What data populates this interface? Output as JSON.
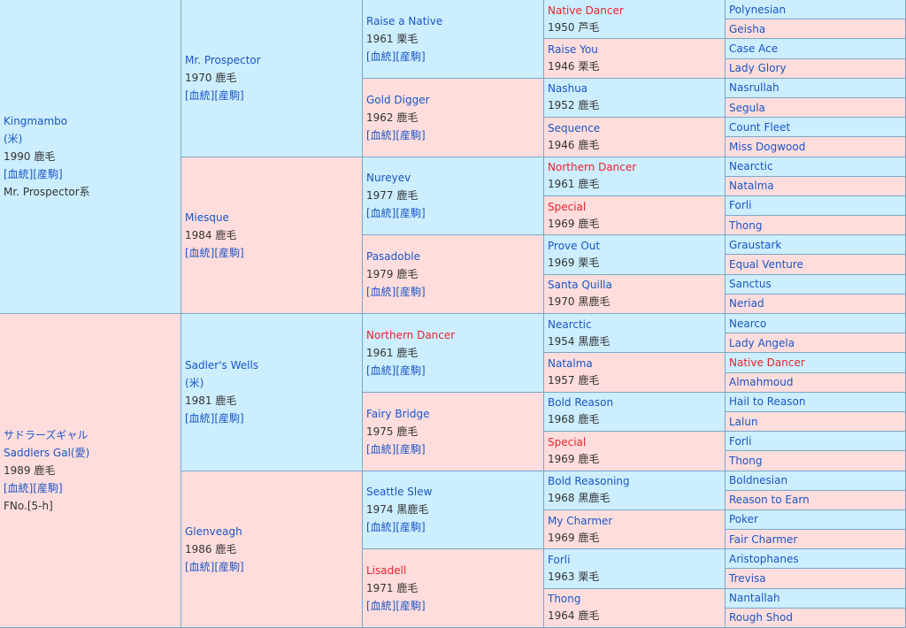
{
  "gen1": [
    {
      "name": "Kingmambo",
      "lines": [
        "(米)",
        "1990 鹿毛"
      ],
      "links": "[血統][産駒]",
      "extra": "Mr. Prospector系",
      "sex": "male"
    },
    {
      "name": "サドラーズギャル",
      "lines": [
        "Saddlers Gal(愛)",
        "1989 鹿毛"
      ],
      "links": "[血統][産駒]",
      "extra": "FNo.[5-h]",
      "sex": "female"
    }
  ],
  "gen2": [
    {
      "name": "Mr. Prospector",
      "year": "1970 鹿毛",
      "links": "[血統][産駒]",
      "sex": "male"
    },
    {
      "name": "Miesque",
      "year": "1984 鹿毛",
      "links": "[血統][産駒]",
      "sex": "female"
    },
    {
      "name": "Sadler's Wells",
      "year": "1981 鹿毛",
      "sub": "(米)",
      "links": "[血統][産駒]",
      "sex": "male"
    },
    {
      "name": "Glenveagh",
      "year": "1986 鹿毛",
      "links": "[血統][産駒]",
      "sex": "female"
    }
  ],
  "gen3": [
    {
      "name": "Raise a Native",
      "year": "1961 栗毛",
      "links": "[血統][産駒]",
      "sex": "male",
      "red": false
    },
    {
      "name": "Gold Digger",
      "year": "1962 鹿毛",
      "links": "[血統][産駒]",
      "sex": "female",
      "red": false
    },
    {
      "name": "Nureyev",
      "year": "1977 鹿毛",
      "links": "[血統][産駒]",
      "sex": "male",
      "red": false
    },
    {
      "name": "Pasadoble",
      "year": "1979 鹿毛",
      "links": "[血統][産駒]",
      "sex": "female",
      "red": false
    },
    {
      "name": "Northern Dancer",
      "year": "1961 鹿毛",
      "links": "[血統][産駒]",
      "sex": "male",
      "red": true
    },
    {
      "name": "Fairy Bridge",
      "year": "1975 鹿毛",
      "links": "[血統][産駒]",
      "sex": "female",
      "red": false
    },
    {
      "name": "Seattle Slew",
      "year": "1974 黒鹿毛",
      "links": "[血統][産駒]",
      "sex": "male",
      "red": false
    },
    {
      "name": "Lisadell",
      "year": "1971 鹿毛",
      "links": "[血統][産駒]",
      "sex": "female",
      "red": true
    }
  ],
  "gen4": [
    {
      "name": "Native Dancer",
      "year": "1950 芦毛",
      "sex": "male",
      "red": true
    },
    {
      "name": "Raise You",
      "year": "1946 栗毛",
      "sex": "female",
      "red": false
    },
    {
      "name": "Nashua",
      "year": "1952 鹿毛",
      "sex": "male",
      "red": false
    },
    {
      "name": "Sequence",
      "year": "1946 鹿毛",
      "sex": "female",
      "red": false
    },
    {
      "name": "Northern Dancer",
      "year": "1961 鹿毛",
      "sex": "male",
      "red": true
    },
    {
      "name": "Special",
      "year": "1969 鹿毛",
      "sex": "female",
      "red": true
    },
    {
      "name": "Prove Out",
      "year": "1969 栗毛",
      "sex": "male",
      "red": false
    },
    {
      "name": "Santa Quilla",
      "year": "1970 黒鹿毛",
      "sex": "female",
      "red": false
    },
    {
      "name": "Nearctic",
      "year": "1954 黒鹿毛",
      "sex": "male",
      "red": false
    },
    {
      "name": "Natalma",
      "year": "1957 鹿毛",
      "sex": "female",
      "red": false
    },
    {
      "name": "Bold Reason",
      "year": "1968 鹿毛",
      "sex": "male",
      "red": false
    },
    {
      "name": "Special",
      "year": "1969 鹿毛",
      "sex": "female",
      "red": true
    },
    {
      "name": "Bold Reasoning",
      "year": "1968 黒鹿毛",
      "sex": "male",
      "red": false
    },
    {
      "name": "My Charmer",
      "year": "1969 鹿毛",
      "sex": "female",
      "red": false
    },
    {
      "name": "Forli",
      "year": "1963 栗毛",
      "sex": "male",
      "red": false
    },
    {
      "name": "Thong",
      "year": "1964 鹿毛",
      "sex": "female",
      "red": false
    }
  ],
  "gen5": [
    {
      "name": "Polynesian",
      "red": false
    },
    {
      "name": "Geisha",
      "red": false
    },
    {
      "name": "Case Ace",
      "red": false
    },
    {
      "name": "Lady Glory",
      "red": false
    },
    {
      "name": "Nasrullah",
      "red": false
    },
    {
      "name": "Segula",
      "red": false
    },
    {
      "name": "Count Fleet",
      "red": false
    },
    {
      "name": "Miss Dogwood",
      "red": false
    },
    {
      "name": "Nearctic",
      "red": false
    },
    {
      "name": "Natalma",
      "red": false
    },
    {
      "name": "Forli",
      "red": false
    },
    {
      "name": "Thong",
      "red": false
    },
    {
      "name": "Graustark",
      "red": false
    },
    {
      "name": "Equal Venture",
      "red": false
    },
    {
      "name": "Sanctus",
      "red": false
    },
    {
      "name": "Neriad",
      "red": false
    },
    {
      "name": "Nearco",
      "red": false
    },
    {
      "name": "Lady Angela",
      "red": false
    },
    {
      "name": "Native Dancer",
      "red": true
    },
    {
      "name": "Almahmoud",
      "red": false
    },
    {
      "name": "Hail to Reason",
      "red": false
    },
    {
      "name": "Lalun",
      "red": false
    },
    {
      "name": "Forli",
      "red": false
    },
    {
      "name": "Thong",
      "red": false
    },
    {
      "name": "Boldnesian",
      "red": false
    },
    {
      "name": "Reason to Earn",
      "red": false
    },
    {
      "name": "Poker",
      "red": false
    },
    {
      "name": "Fair Charmer",
      "red": false
    },
    {
      "name": "Aristophanes",
      "red": false
    },
    {
      "name": "Trevisa",
      "red": false
    },
    {
      "name": "Nantallah",
      "red": false
    },
    {
      "name": "Rough Shod",
      "red": false
    }
  ],
  "colors": {
    "male": "#cceeff",
    "female": "#ffdddd",
    "link": "#1a56c4",
    "red": "#e8242c"
  }
}
